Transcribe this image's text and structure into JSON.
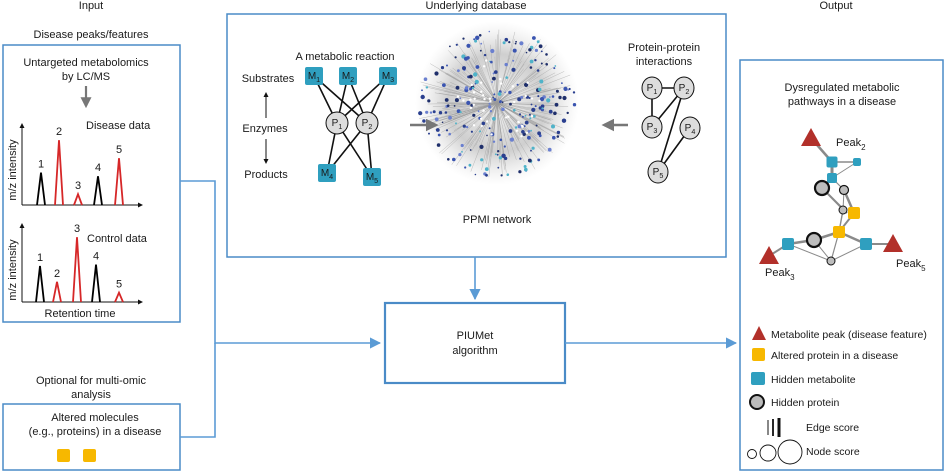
{
  "headers": {
    "input": "Input",
    "database": "Underlying database",
    "output": "Output"
  },
  "input": {
    "section_title": "Disease peaks/features",
    "method_line1": "Untargeted metabolomics",
    "method_line2": "by LC/MS",
    "disease_label": "Disease data",
    "control_label": "Control data",
    "yaxis_label": "m/z intensity",
    "xaxis_label": "Retention time",
    "peak_numbers": [
      "1",
      "2",
      "3",
      "4",
      "5"
    ],
    "disease_peaks": [
      {
        "id": "1",
        "height": 0.45,
        "color": "#000000"
      },
      {
        "id": "2",
        "height": 0.9,
        "color": "#d62728"
      },
      {
        "id": "3",
        "height": 0.15,
        "color": "#d62728"
      },
      {
        "id": "4",
        "height": 0.4,
        "color": "#000000"
      },
      {
        "id": "5",
        "height": 0.65,
        "color": "#d62728"
      }
    ],
    "control_peaks": [
      {
        "id": "1",
        "height": 0.5,
        "color": "#000000"
      },
      {
        "id": "2",
        "height": 0.28,
        "color": "#d62728"
      },
      {
        "id": "3",
        "height": 0.9,
        "color": "#d62728"
      },
      {
        "id": "4",
        "height": 0.52,
        "color": "#000000"
      },
      {
        "id": "5",
        "height": 0.13,
        "color": "#d62728"
      }
    ]
  },
  "database": {
    "reaction_title": "A metabolic reaction",
    "substrates": "Substrates",
    "enzymes": "Enzymes",
    "products": "Products",
    "metabolites": [
      {
        "base": "M",
        "sub": "1"
      },
      {
        "base": "M",
        "sub": "2"
      },
      {
        "base": "M",
        "sub": "3"
      },
      {
        "base": "M",
        "sub": "4"
      },
      {
        "base": "M",
        "sub": "5"
      }
    ],
    "reaction_proteins": [
      {
        "base": "P",
        "sub": "1"
      },
      {
        "base": "P",
        "sub": "2"
      }
    ],
    "ppi_title_line1": "Protein-protein",
    "ppi_title_line2": "interactions",
    "ppi_proteins": [
      {
        "base": "P",
        "sub": "1"
      },
      {
        "base": "P",
        "sub": "2"
      },
      {
        "base": "P",
        "sub": "3"
      },
      {
        "base": "P",
        "sub": "4"
      },
      {
        "base": "P",
        "sub": "5"
      }
    ],
    "network_caption": "PPMI network"
  },
  "algorithm": {
    "line1": "PIUMet",
    "line2": "algorithm"
  },
  "optional": {
    "title_line1": "Optional for multi-omic",
    "title_line2": "analysis",
    "box_line1": "Altered molecules",
    "box_line2": "(e.g., proteins) in a disease"
  },
  "output": {
    "title_line1": "Dysregulated metabolic",
    "title_line2": "pathways in a disease",
    "peaks": [
      {
        "base": "Peak",
        "sub": "2"
      },
      {
        "base": "Peak",
        "sub": "3"
      },
      {
        "base": "Peak",
        "sub": "5"
      }
    ],
    "legend": {
      "metabolite_peak": "Metabolite peak (disease feature)",
      "altered_protein": "Altered protein in a disease",
      "hidden_metabolite": "Hidden metabolite",
      "hidden_protein": "Hidden protein",
      "edge_score": "Edge score",
      "node_score": "Node score"
    }
  },
  "colors": {
    "frame": "#4a8bc7",
    "arrow": "#5b9bd5",
    "teal": "#2f9fbf",
    "gold": "#f7b800",
    "red_peak": "#d62728",
    "triangle": "#b2302a",
    "protein_fill": "#dddddd",
    "gray_arrow": "#777777"
  }
}
